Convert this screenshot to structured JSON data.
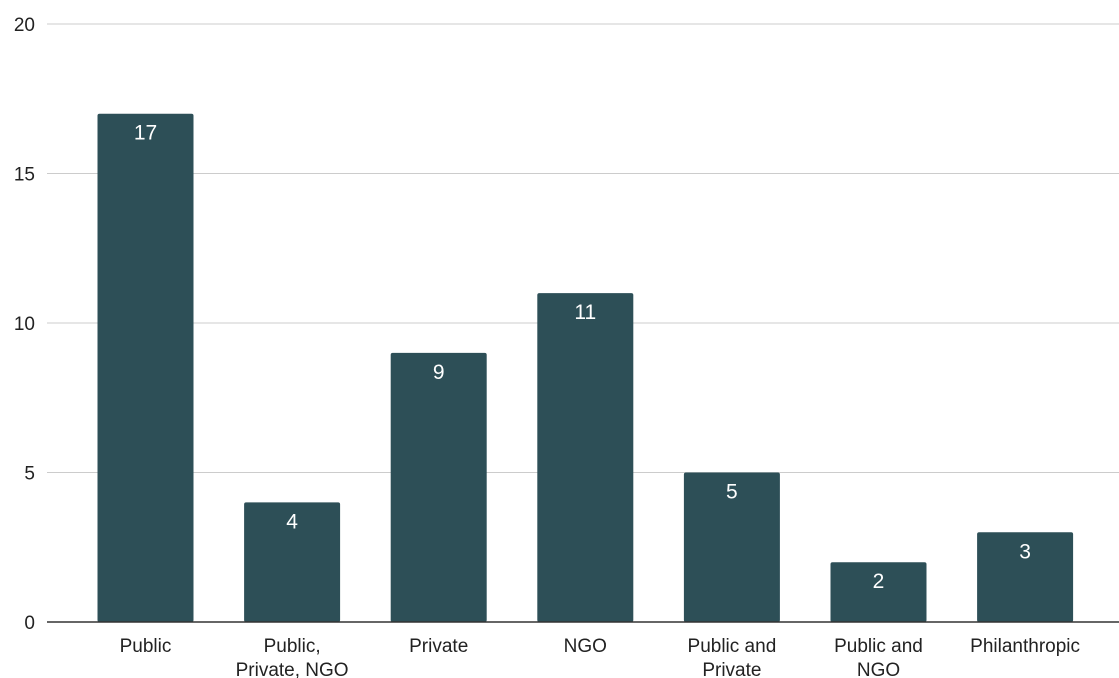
{
  "chart_data": {
    "type": "bar",
    "categories": [
      [
        "Public"
      ],
      [
        "Public,",
        "Private, NGO"
      ],
      [
        "Private"
      ],
      [
        "NGO"
      ],
      [
        "Public and",
        "Private"
      ],
      [
        "Public and",
        "NGO"
      ],
      [
        "Philanthropic"
      ]
    ],
    "values": [
      17,
      4,
      9,
      11,
      5,
      2,
      3
    ],
    "data_labels": [
      "17",
      "4",
      "9",
      "11",
      "5",
      "2",
      "3"
    ],
    "ylim": [
      0,
      20
    ],
    "yticks": [
      "0",
      "5",
      "10",
      "15",
      "20"
    ],
    "grid": true,
    "legend": "none",
    "colors": {
      "bar": "#2d4f57",
      "grid": "#cccccc",
      "baseline": "#333333",
      "data_label": "#ffffff"
    }
  }
}
